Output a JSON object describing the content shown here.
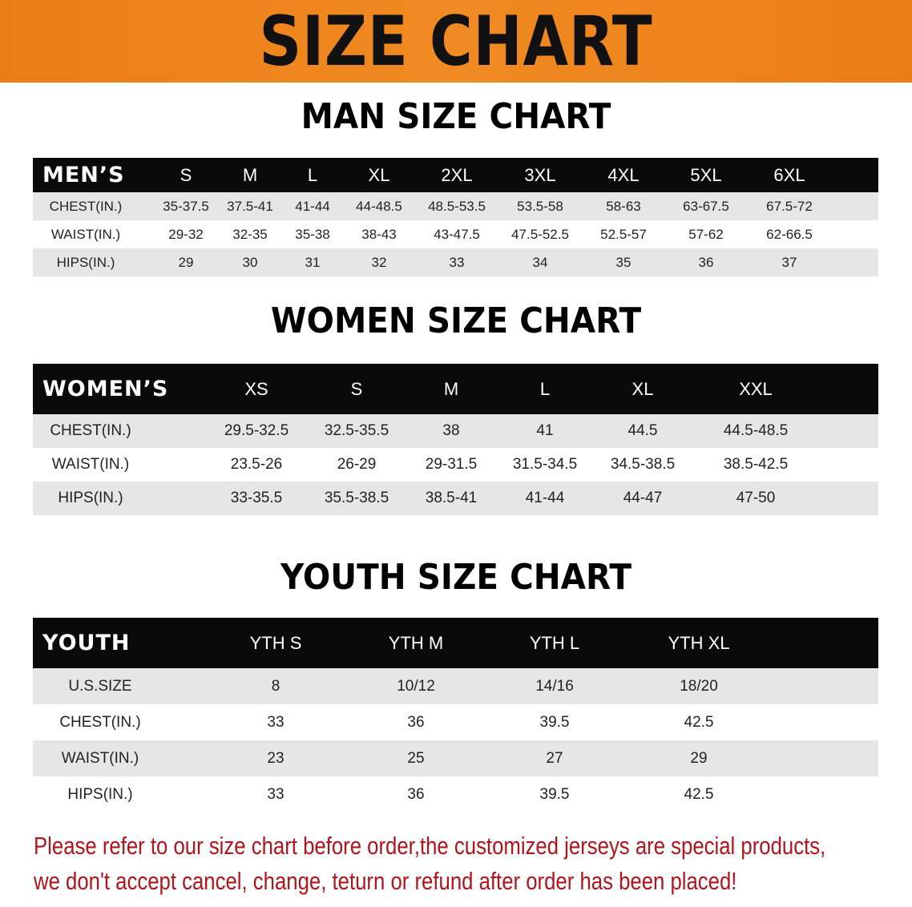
{
  "banner": {
    "title": "SIZE CHART",
    "color": "#ec7d16"
  },
  "men": {
    "title": "MAN SIZE CHART",
    "header": [
      "MEN’S",
      "S",
      "M",
      "L",
      "XL",
      "2XL",
      "3XL",
      "4XL",
      "5XL",
      "6XL"
    ],
    "rows": [
      [
        "CHEST(IN.)",
        "35-37.5",
        "37.5-41",
        "41-44",
        "44-48.5",
        "48.5-53.5",
        "53.5-58",
        "58-63",
        "63-67.5",
        "67.5-72"
      ],
      [
        "WAIST(IN.)",
        "29-32",
        "32-35",
        "35-38",
        "38-43",
        "43-47.5",
        "47.5-52.5",
        "52.5-57",
        "57-62",
        "62-66.5"
      ],
      [
        "HIPS(IN.)",
        "29",
        "30",
        "31",
        "32",
        "33",
        "34",
        "35",
        "36",
        "37"
      ]
    ]
  },
  "women": {
    "title": "WOMEN SIZE CHART",
    "header": [
      "WOMEN’S",
      "XS",
      "S",
      "M",
      "L",
      "XL",
      "XXL"
    ],
    "rows": [
      [
        "CHEST(IN.)",
        "29.5-32.5",
        "32.5-35.5",
        "38",
        "41",
        "44.5",
        "44.5-48.5"
      ],
      [
        "WAIST(IN.)",
        "23.5-26",
        "26-29",
        "29-31.5",
        "31.5-34.5",
        "34.5-38.5",
        "38.5-42.5"
      ],
      [
        "HIPS(IN.)",
        "33-35.5",
        "35.5-38.5",
        "38.5-41",
        "41-44",
        "44-47",
        "47-50"
      ]
    ]
  },
  "youth": {
    "title": "YOUTH SIZE CHART",
    "header": [
      "YOUTH",
      "YTH S",
      "YTH M",
      "YTH L",
      "YTH XL"
    ],
    "rows": [
      [
        "U.S.SIZE",
        "8",
        "10/12",
        "14/16",
        "18/20"
      ],
      [
        "CHEST(IN.)",
        "33",
        "36",
        "39.5",
        "42.5"
      ],
      [
        "WAIST(IN.)",
        "23",
        "25",
        "27",
        "29"
      ],
      [
        "HIPS(IN.)",
        "33",
        "36",
        "39.5",
        "42.5"
      ]
    ]
  },
  "notice": {
    "line1": "Please refer to our size chart before order,the customized jerseys are special products,",
    "line2": "we don't accept cancel, change, teturn or refund after order has been placed!",
    "color": "#b0141c"
  }
}
